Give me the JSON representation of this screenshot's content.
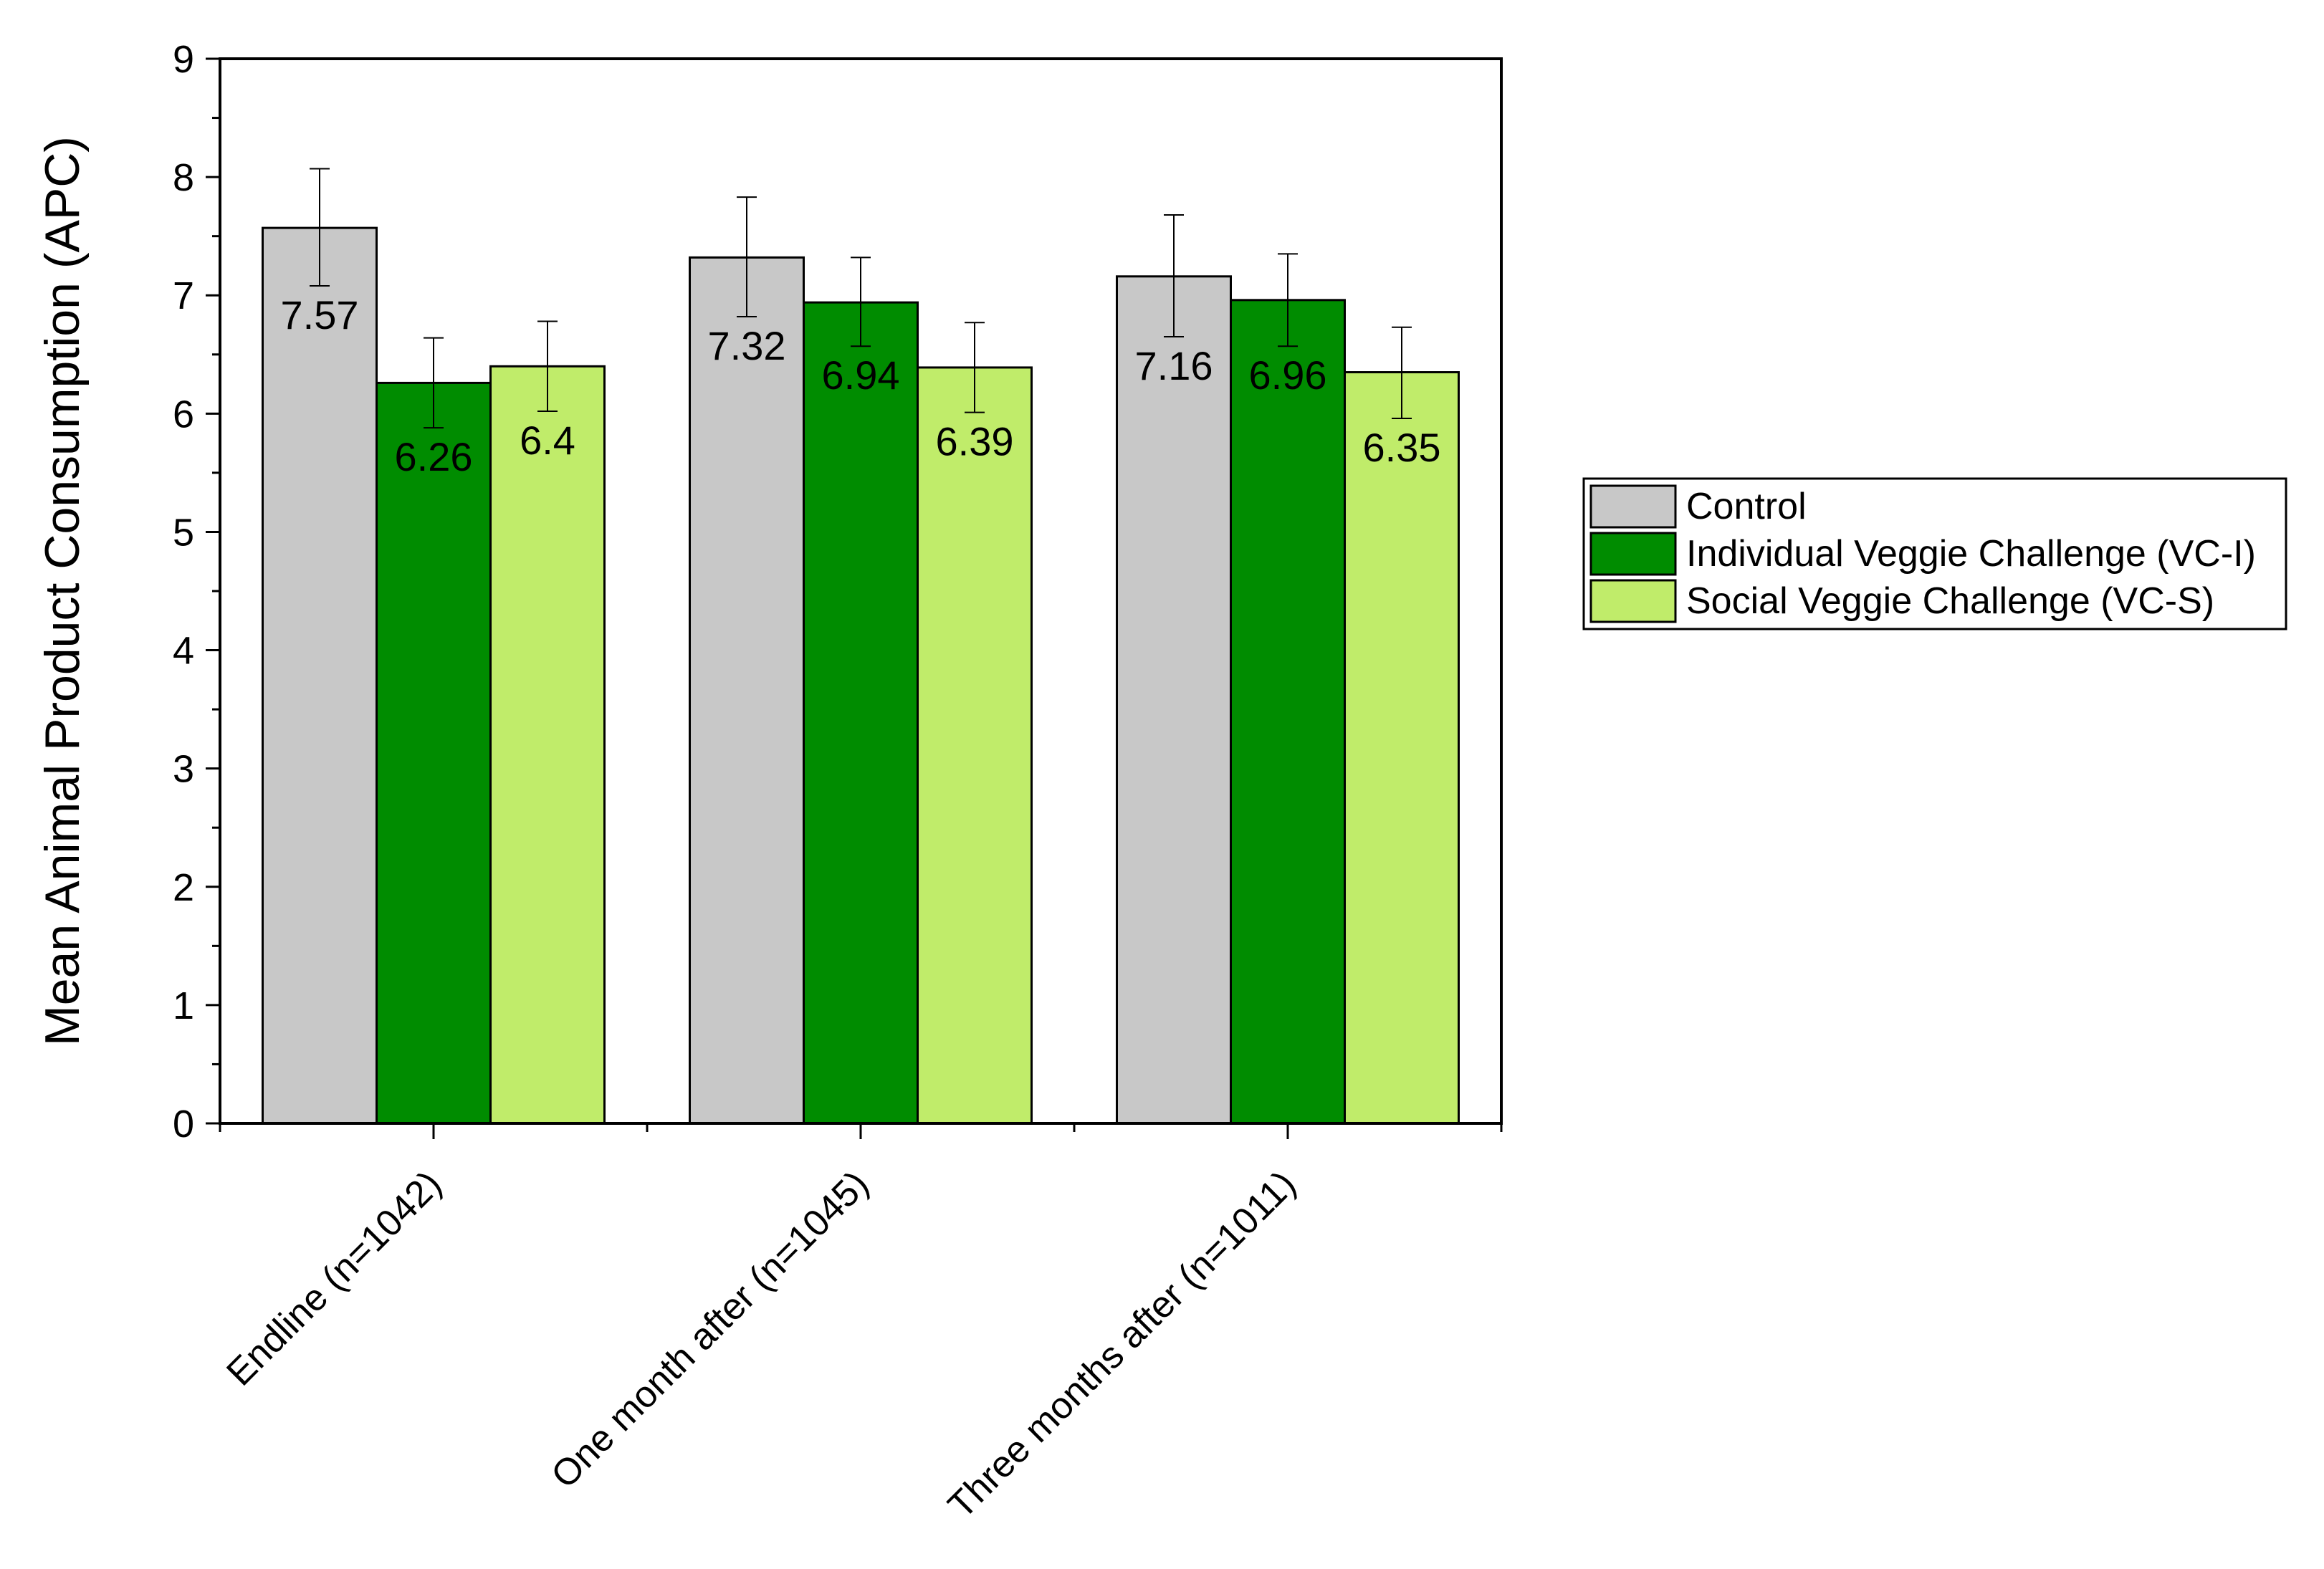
{
  "chart_data": {
    "type": "bar",
    "title": "",
    "xlabel": "",
    "ylabel": "Mean Animal Product Consumption (APC)",
    "ylim": [
      0,
      9
    ],
    "yticks": [
      "0",
      "1",
      "2",
      "3",
      "4",
      "5",
      "6",
      "7",
      "8",
      "9"
    ],
    "categories": [
      "Endline (n=1042)",
      "One month after (n=1045)",
      "Three months after (n=1011)"
    ],
    "series": [
      {
        "name": "Control",
        "color": "#c8c8c8",
        "values": [
          7.57,
          7.32,
          7.16
        ],
        "labels": [
          "7.57",
          "7.32",
          "7.16"
        ],
        "error_low": [
          7.08,
          6.82,
          6.65
        ],
        "error_high": [
          8.07,
          7.83,
          7.68
        ]
      },
      {
        "name": "Individual Veggie Challenge (VC-I)",
        "color": "#008c00",
        "values": [
          6.26,
          6.94,
          6.96
        ],
        "labels": [
          "6.26",
          "6.94",
          "6.96"
        ],
        "error_low": [
          5.88,
          6.57,
          6.57
        ],
        "error_high": [
          6.64,
          7.32,
          7.35
        ]
      },
      {
        "name": "Social Veggie Challenge (VC-S)",
        "color": "#c0ec6a",
        "values": [
          6.4,
          6.39,
          6.35
        ],
        "labels": [
          "6.4",
          "6.39",
          "6.35"
        ],
        "error_low": [
          6.02,
          6.01,
          5.96
        ],
        "error_high": [
          6.78,
          6.77,
          6.73
        ]
      }
    ],
    "legend": {
      "position": "right"
    },
    "grid": false
  }
}
